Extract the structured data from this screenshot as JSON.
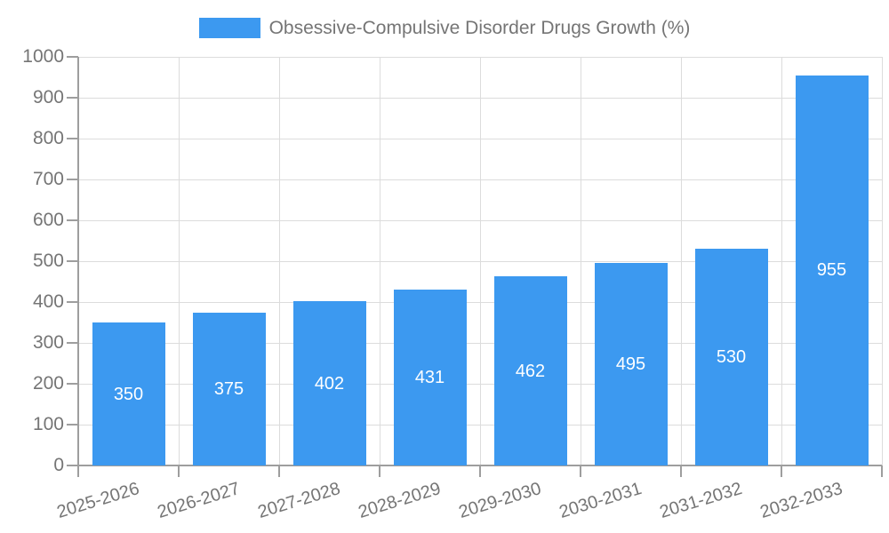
{
  "chart_data": {
    "type": "bar",
    "title": "Obsessive-Compulsive Disorder Drugs Growth (%)",
    "categories": [
      "2025-2026",
      "2026-2027",
      "2027-2028",
      "2028-2029",
      "2029-2030",
      "2030-2031",
      "2031-2032",
      "2032-2033"
    ],
    "values": [
      350,
      375,
      402,
      431,
      462,
      495,
      530,
      955
    ],
    "xlabel": "",
    "ylabel": "",
    "ylim": [
      0,
      1000
    ],
    "y_tick_step": 100,
    "grid": true,
    "legend_position": "top-center",
    "bar_value_labels": "inside-center"
  },
  "colors": {
    "bar": "#3C99F0",
    "bar_label": "#FFFFFF",
    "axis": "#9E9E9E",
    "grid": "#DCDCDC",
    "tick_label": "#757575",
    "legend_label": "#757575",
    "background": "#FFFFFF"
  }
}
